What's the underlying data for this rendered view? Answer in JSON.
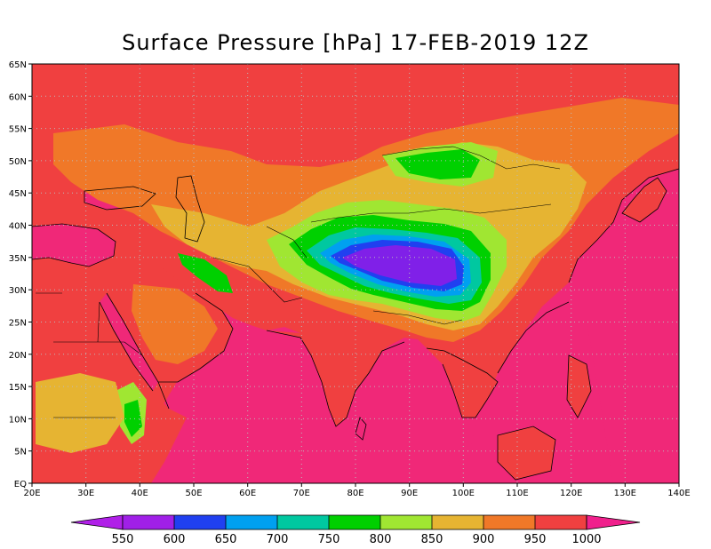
{
  "title": "Surface Pressure [hPa] 17-FEB-2019 12Z",
  "map": {
    "lon_range": [
      20,
      140
    ],
    "lat_range": [
      0,
      65
    ],
    "lon_ticks": [
      "20E",
      "30E",
      "40E",
      "50E",
      "60E",
      "70E",
      "80E",
      "90E",
      "100E",
      "110E",
      "120E",
      "130E",
      "140E"
    ],
    "lat_ticks": [
      "EQ",
      "5N",
      "10N",
      "15N",
      "20N",
      "25N",
      "30N",
      "35N",
      "40N",
      "45N",
      "50N",
      "55N",
      "60N",
      "65N"
    ],
    "gridlines": "dotted"
  },
  "colorbar": {
    "levels": [
      "550",
      "600",
      "650",
      "700",
      "750",
      "800",
      "850",
      "900",
      "950",
      "1000"
    ],
    "colors": [
      "#a020e8",
      "#8020e8",
      "#2040f0",
      "#00a0f0",
      "#00c8a0",
      "#00d000",
      "#a0e632",
      "#e6b432",
      "#f07828",
      "#f04040",
      "#f02878"
    ],
    "below_color": "#b020e8",
    "above_color": "#f0208c"
  },
  "legend_colors": {
    "ocean": "#f02878",
    "land_lowland": "#f04040",
    "uplands": "#f07828",
    "plateau_edge": "#e6b432",
    "high_terrain": "#a0e632",
    "tibet_edge": "#00d000",
    "tibet_core": "#8020e8",
    "coast": "#000000"
  }
}
